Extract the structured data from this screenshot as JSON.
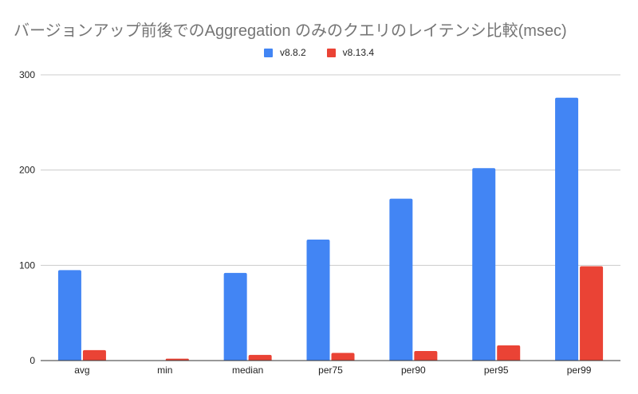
{
  "chart_data": {
    "type": "bar",
    "title": "バージョンアップ前後でのAggregation のみのクエリのレイテンシ比較(msec)",
    "categories": [
      "avg",
      "min",
      "median",
      "per75",
      "per90",
      "per95",
      "per99"
    ],
    "series": [
      {
        "name": "v8.8.2",
        "color": "#4285f4",
        "values": [
          95,
          0,
          92,
          127,
          170,
          202,
          276
        ]
      },
      {
        "name": "v8.13.4",
        "color": "#ea4335",
        "values": [
          11,
          2,
          6,
          8,
          10,
          16,
          99
        ]
      }
    ],
    "ylim": [
      0,
      300
    ],
    "yticks": [
      "0",
      "100",
      "200",
      "300"
    ],
    "grid": true,
    "legend_position": "top-center"
  }
}
